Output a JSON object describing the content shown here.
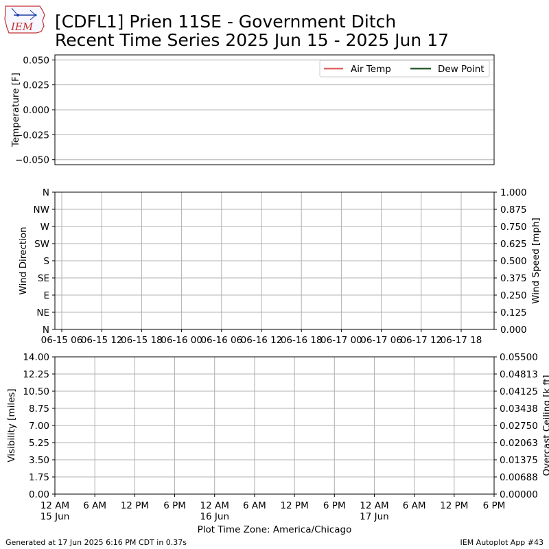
{
  "title_line1": "[CDFL1] Prien 11SE - Government Ditch",
  "title_line2": "Recent Time Series 2025 Jun 15 - 2025 Jun 17",
  "logo_text": "IEM",
  "footer_left": "Generated at 17 Jun 2025 6:16 PM CDT in 0.37s",
  "footer_right": "IEM Autoplot App #43",
  "xlabel": "Plot Time Zone: America/Chicago",
  "chart_data": [
    {
      "type": "line",
      "name": "temperature",
      "ylabel": "Temperature [F]",
      "yticks": [
        "0.050",
        "0.025",
        "0.000",
        "0.025",
        "0.050"
      ],
      "yticks_negative": [
        false,
        false,
        false,
        true,
        true
      ],
      "ylim": [
        -0.055,
        0.055
      ],
      "grid": true,
      "legend_placement": "top-right",
      "series": [
        {
          "name": "Air Temp",
          "color": "#e06666",
          "values": []
        },
        {
          "name": "Dew Point",
          "color": "#2e5e2e",
          "values": []
        }
      ]
    },
    {
      "type": "line",
      "name": "wind",
      "ylabel_left": "Wind Direction",
      "ylabel_right": "Wind Speed [mph]",
      "yticks_left": [
        "N",
        "NW",
        "W",
        "SW",
        "S",
        "SE",
        "E",
        "NE",
        "N"
      ],
      "yticks_right": [
        "1.000",
        "0.875",
        "0.750",
        "0.625",
        "0.500",
        "0.375",
        "0.250",
        "0.125",
        "0.000"
      ],
      "xticks": [
        "06-15 06",
        "06-15 12",
        "06-15 18",
        "06-16 00",
        "06-16 06",
        "06-16 12",
        "06-16 18",
        "06-17 00",
        "06-17 06",
        "06-17 12",
        "06-17 18"
      ],
      "ylim_right": [
        0,
        1
      ],
      "grid": true,
      "series": []
    },
    {
      "type": "line",
      "name": "visibility",
      "ylabel_left": "Visibility [miles]",
      "ylabel_right": "Overcast Ceiling [k ft]",
      "ylabel_right_color": "#008000",
      "yticks_left": [
        "14.00",
        "12.25",
        "10.50",
        "8.75",
        "7.00",
        "5.25",
        "3.50",
        "1.75",
        "0.00"
      ],
      "yticks_right": [
        "0.05500",
        "0.04813",
        "0.04125",
        "0.03438",
        "0.02750",
        "0.02063",
        "0.01375",
        "0.00688",
        "0.00000"
      ],
      "ylim_left": [
        0,
        14
      ],
      "ylim_right": [
        0,
        0.055
      ],
      "xticks": [
        {
          "l1": "12 AM",
          "l2": "15 Jun"
        },
        {
          "l1": "6 AM",
          "l2": ""
        },
        {
          "l1": "12 PM",
          "l2": ""
        },
        {
          "l1": "6 PM",
          "l2": ""
        },
        {
          "l1": "12 AM",
          "l2": "16 Jun"
        },
        {
          "l1": "6 AM",
          "l2": ""
        },
        {
          "l1": "12 PM",
          "l2": ""
        },
        {
          "l1": "6 PM",
          "l2": ""
        },
        {
          "l1": "12 AM",
          "l2": "17 Jun"
        },
        {
          "l1": "6 AM",
          "l2": ""
        },
        {
          "l1": "12 PM",
          "l2": ""
        },
        {
          "l1": "6 PM",
          "l2": ""
        }
      ],
      "grid": true,
      "series": []
    }
  ]
}
